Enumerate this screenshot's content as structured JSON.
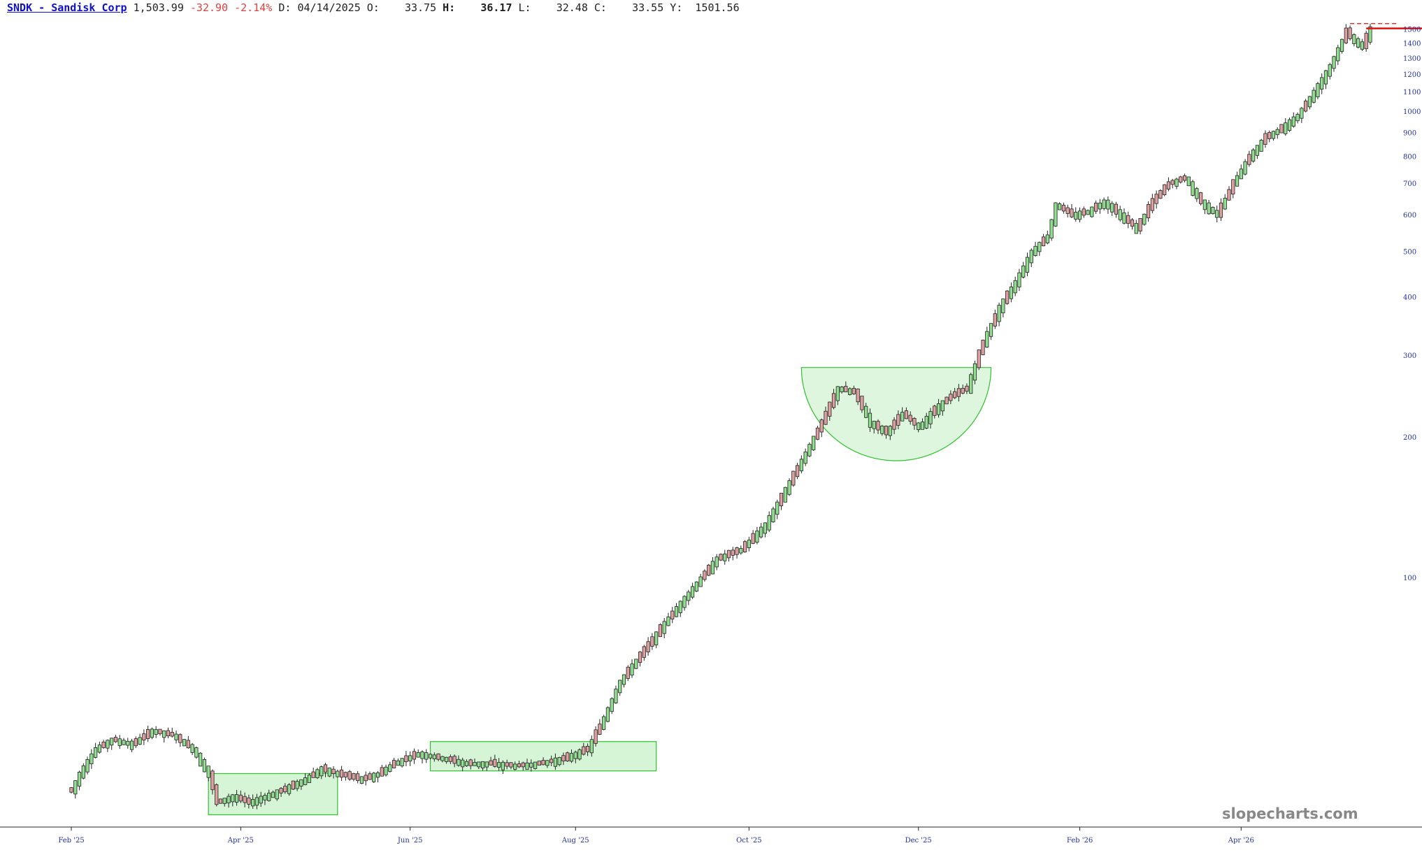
{
  "header": {
    "symbol_link": "SNDK - Sandisk Corp",
    "last": "1,503.99",
    "change": "-32.90",
    "change_pct": "-2.14%",
    "date_label": "D:",
    "date": "04/14/2025",
    "open_label": "O:",
    "open": "33.75",
    "high_label": "H:",
    "high": "36.17",
    "low_label": "L:",
    "low": "32.48",
    "close_label": "C:",
    "close": "33.55",
    "y_label": "Y:",
    "y": "1501.56"
  },
  "watermark": "slopecharts.com",
  "colors": {
    "up": "#90e090",
    "down": "#e0a0a0",
    "axis_text_y": "#2030a0",
    "axis_text_x": "#2030a0",
    "pattern_fill": "#c8f0c8",
    "pattern_stroke": "#30c030",
    "last_price_line": "#e01010"
  },
  "chart_data": {
    "type": "candlestick",
    "y_scale": "log",
    "ylim": [
      30,
      1560
    ],
    "y_ticks": [
      100,
      200,
      300,
      400,
      500,
      600,
      700,
      800,
      900,
      1000,
      1100,
      1200,
      1300,
      1400,
      1500
    ],
    "y_tick_labels": [
      "100",
      "200",
      "300",
      "400",
      "500",
      "600",
      "700",
      "800",
      "900",
      "1000",
      "1100",
      "1200",
      "1300",
      "1400",
      "1500"
    ],
    "x_labels": [
      "Feb '25",
      "Apr '25",
      "Jun '25",
      "Aug '25",
      "Oct '25",
      "Dec '25",
      "Feb '26",
      "Apr '26"
    ],
    "x_label_bar_index": [
      0,
      42,
      84,
      125,
      168,
      210,
      250,
      290
    ],
    "total_bars": 323,
    "anchors": [
      [
        0,
        35
      ],
      [
        2,
        38
      ],
      [
        6,
        43
      ],
      [
        10,
        45
      ],
      [
        15,
        44
      ],
      [
        20,
        47
      ],
      [
        25,
        46
      ],
      [
        30,
        43
      ],
      [
        34,
        38
      ],
      [
        36,
        33
      ],
      [
        40,
        34
      ],
      [
        44,
        33
      ],
      [
        48,
        34
      ],
      [
        52,
        35
      ],
      [
        58,
        37
      ],
      [
        62,
        39
      ],
      [
        66,
        38
      ],
      [
        72,
        37
      ],
      [
        76,
        38
      ],
      [
        80,
        40
      ],
      [
        86,
        42
      ],
      [
        92,
        41
      ],
      [
        98,
        40
      ],
      [
        104,
        40
      ],
      [
        110,
        39.5
      ],
      [
        116,
        40
      ],
      [
        122,
        41
      ],
      [
        128,
        43
      ],
      [
        132,
        50
      ],
      [
        136,
        60
      ],
      [
        142,
        70
      ],
      [
        148,
        82
      ],
      [
        154,
        95
      ],
      [
        160,
        110
      ],
      [
        166,
        115
      ],
      [
        172,
        130
      ],
      [
        178,
        160
      ],
      [
        182,
        185
      ],
      [
        186,
        215
      ],
      [
        190,
        255
      ],
      [
        194,
        250
      ],
      [
        198,
        215
      ],
      [
        202,
        205
      ],
      [
        206,
        225
      ],
      [
        210,
        210
      ],
      [
        214,
        230
      ],
      [
        218,
        245
      ],
      [
        222,
        255
      ],
      [
        226,
        320
      ],
      [
        230,
        380
      ],
      [
        234,
        430
      ],
      [
        238,
        500
      ],
      [
        242,
        540
      ],
      [
        244,
        630
      ],
      [
        248,
        600
      ],
      [
        252,
        610
      ],
      [
        256,
        640
      ],
      [
        260,
        600
      ],
      [
        264,
        560
      ],
      [
        268,
        640
      ],
      [
        272,
        700
      ],
      [
        276,
        720
      ],
      [
        280,
        640
      ],
      [
        284,
        600
      ],
      [
        288,
        700
      ],
      [
        292,
        800
      ],
      [
        296,
        880
      ],
      [
        300,
        920
      ],
      [
        304,
        980
      ],
      [
        308,
        1100
      ],
      [
        312,
        1250
      ],
      [
        316,
        1480
      ],
      [
        318,
        1420
      ],
      [
        320,
        1380
      ],
      [
        322,
        1504
      ]
    ],
    "patterns": [
      {
        "shape": "rectangle",
        "from_bar": 34,
        "to_bar": 66,
        "y_range": [
          31,
          38
        ]
      },
      {
        "shape": "rectangle",
        "from_bar": 89,
        "to_bar": 145,
        "y_range": [
          38.5,
          44.5
        ]
      },
      {
        "shape": "cup",
        "from_bar": 181,
        "to_bar": 228,
        "rim": 282,
        "bottom": 178
      }
    ],
    "last_price": 1504,
    "prior_high": 1540
  }
}
